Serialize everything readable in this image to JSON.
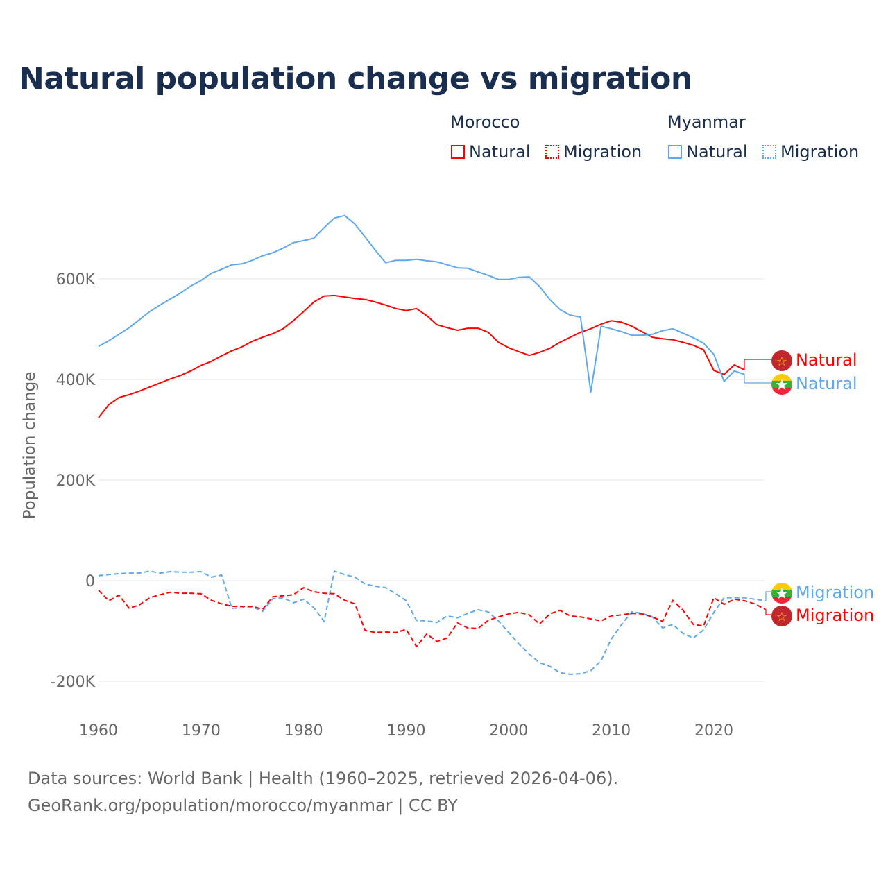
{
  "title": "Natural population change vs migration",
  "legend": {
    "groups": [
      {
        "name": "Morocco",
        "color": "#ff0000",
        "items": [
          "Natural",
          "Migration"
        ]
      },
      {
        "name": "Myanmar",
        "color": "#5ea8ec",
        "items": [
          "Natural",
          "Migration"
        ]
      }
    ]
  },
  "footer": {
    "line1": "Data sources: World Bank | Health (1960–2025, retrieved 2026-04-06).",
    "line2": "GeoRank.org/population/morocco/myanmar | CC BY"
  },
  "chart_data": {
    "type": "line",
    "title": "Natural population change vs migration",
    "xlabel": "",
    "ylabel": "Population change",
    "xlim": [
      1960,
      2025
    ],
    "ylim": [
      -200000,
      700000
    ],
    "x_ticks": [
      1960,
      1970,
      1980,
      1990,
      2000,
      2010,
      2020
    ],
    "x_tick_labels": [
      "1960",
      "1970",
      "1980",
      "1990",
      "2000",
      "2010",
      "2020"
    ],
    "y_ticks": [
      600000,
      400000,
      200000,
      0,
      -200000
    ],
    "y_tick_labels": [
      "600K",
      "400K",
      "200K",
      "0",
      "-200K"
    ],
    "grid": true,
    "legend_position": "top-right",
    "series": [
      {
        "name": "Morocco Natural",
        "label": "Natural",
        "country": "Morocco",
        "color": "#ff0000",
        "dash": false,
        "start": 1960,
        "values": [
          324,
          350,
          364,
          370,
          377,
          385,
          393,
          401,
          408,
          417,
          428,
          436,
          447,
          457,
          465,
          476,
          484,
          491,
          501,
          517,
          535,
          554,
          566,
          567,
          564,
          561,
          559,
          554,
          548,
          541,
          537,
          541,
          527,
          509,
          503,
          498,
          502,
          502,
          494,
          474,
          463,
          455,
          448,
          454,
          462,
          474,
          484,
          494,
          501,
          510,
          517,
          514,
          506,
          495,
          484,
          481,
          479,
          474,
          468,
          459,
          418,
          410,
          429,
          419
        ]
      },
      {
        "name": "Myanmar Natural",
        "label": "Natural",
        "country": "Myanmar",
        "color": "#5ea8ec",
        "dash": false,
        "start": 1960,
        "values": [
          466,
          477,
          490,
          503,
          519,
          535,
          548,
          560,
          572,
          586,
          597,
          611,
          619,
          628,
          630,
          637,
          646,
          652,
          661,
          672,
          676,
          681,
          702,
          721,
          726,
          709,
          683,
          657,
          632,
          637,
          637,
          639,
          636,
          634,
          628,
          622,
          621,
          614,
          607,
          599,
          599,
          603,
          604,
          585,
          559,
          539,
          528,
          524,
          375,
          506,
          501,
          495,
          488,
          488,
          490,
          497,
          501,
          492,
          483,
          472,
          450,
          396,
          417,
          410
        ]
      },
      {
        "name": "Myanmar Migration",
        "label": "Migration",
        "country": "Myanmar",
        "color": "#5ea8ec",
        "dash": true,
        "start": 1960,
        "values": [
          10,
          12,
          14,
          15,
          15,
          19,
          15,
          18,
          17,
          17,
          18,
          7,
          11,
          -55,
          -54,
          -52,
          -61,
          -36,
          -34,
          -44,
          -37,
          -54,
          -81,
          19,
          12,
          7,
          -7,
          -11,
          -14,
          -26,
          -40,
          -79,
          -80,
          -83,
          -70,
          -74,
          -65,
          -58,
          -62,
          -80,
          -103,
          -126,
          -146,
          -163,
          -170,
          -183,
          -186,
          -185,
          -179,
          -159,
          -116,
          -87,
          -62,
          -65,
          -72,
          -94,
          -87,
          -105,
          -114,
          -98,
          -63,
          -34,
          -34,
          -34,
          -37,
          -40
        ]
      },
      {
        "name": "Morocco Migration",
        "label": "Migration",
        "country": "Morocco",
        "color": "#ff0000",
        "dash": true,
        "start": 1960,
        "values": [
          -19,
          -40,
          -29,
          -55,
          -48,
          -34,
          -28,
          -23,
          -25,
          -25,
          -26,
          -39,
          -46,
          -51,
          -51,
          -51,
          -57,
          -32,
          -30,
          -28,
          -14,
          -22,
          -25,
          -26,
          -39,
          -46,
          -99,
          -103,
          -102,
          -103,
          -97,
          -131,
          -106,
          -121,
          -114,
          -84,
          -94,
          -95,
          -79,
          -72,
          -66,
          -63,
          -68,
          -86,
          -66,
          -59,
          -70,
          -72,
          -76,
          -80,
          -70,
          -68,
          -65,
          -66,
          -72,
          -81,
          -39,
          -59,
          -87,
          -90,
          -34,
          -47,
          -37,
          -40,
          -46,
          -57
        ]
      }
    ],
    "value_unit": "thousands"
  }
}
